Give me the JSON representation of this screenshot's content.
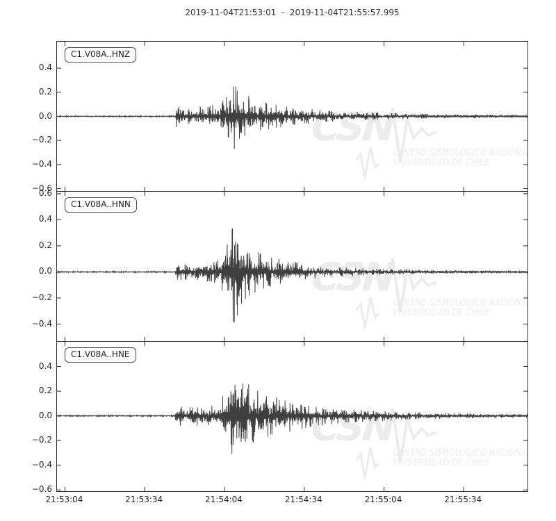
{
  "figure": {
    "background": "#ffffff",
    "axis_color": "#2e2e2e",
    "trace_color": "#3f3f3f",
    "watermark_color": "#ececec"
  },
  "watermark": {
    "logo_text": "CSN",
    "line1": "CENTRO SISMOLÓGICO NACIONAL",
    "line2": "UNIVERSIDAD DE CHILE"
  },
  "chart_data": {
    "type": "line",
    "title": "2019-11-04T21:53:01  -  2019-11-04T21:55:57.995",
    "x_start_label": "21:53:01",
    "x_end_label": "21:55:57.995",
    "duration_seconds": 176.995,
    "xlabel": "",
    "ylabel": "",
    "grid": false,
    "legend": false,
    "xticks": [
      {
        "label": "21:53:04",
        "t": 3
      },
      {
        "label": "21:53:34",
        "t": 33
      },
      {
        "label": "21:54:04",
        "t": 63
      },
      {
        "label": "21:54:34",
        "t": 93
      },
      {
        "label": "21:55:04",
        "t": 123
      },
      {
        "label": "21:55:34",
        "t": 153
      }
    ],
    "subplots": [
      {
        "label": "C1.V08A..HNZ",
        "ylim": [
          -0.62,
          0.62
        ],
        "yticks": [
          0.4,
          0.2,
          0.0,
          -0.2,
          -0.4,
          -0.6
        ],
        "onset_t": 44.5,
        "peak_t": 66.5,
        "peak_amplitude": 0.28,
        "neg_scale": 0.95,
        "seed": 11,
        "envelope": [
          [
            0,
            0.004
          ],
          [
            44.3,
            0.004
          ],
          [
            45,
            0.095
          ],
          [
            47,
            0.075
          ],
          [
            52,
            0.07
          ],
          [
            57,
            0.078
          ],
          [
            61,
            0.1
          ],
          [
            64,
            0.16
          ],
          [
            66.5,
            0.27
          ],
          [
            68.5,
            0.2
          ],
          [
            72,
            0.155
          ],
          [
            78,
            0.12
          ],
          [
            85,
            0.09
          ],
          [
            92,
            0.065
          ],
          [
            100,
            0.05
          ],
          [
            112,
            0.035
          ],
          [
            126,
            0.025
          ],
          [
            145,
            0.017
          ],
          [
            160,
            0.013
          ],
          [
            176.995,
            0.011
          ]
        ]
      },
      {
        "label": "C1.V08A..HNN",
        "ylim": [
          -0.53,
          0.615
        ],
        "yticks": [
          0.6,
          0.4,
          0.2,
          0.0,
          -0.2,
          -0.4
        ],
        "onset_t": 44.5,
        "peak_t": 66.8,
        "peak_amplitude": 0.43,
        "neg_scale": 0.95,
        "seed": 22,
        "envelope": [
          [
            0,
            0.004
          ],
          [
            44.3,
            0.004
          ],
          [
            45,
            0.07
          ],
          [
            50,
            0.062
          ],
          [
            56,
            0.068
          ],
          [
            60,
            0.085
          ],
          [
            63,
            0.16
          ],
          [
            65,
            0.27
          ],
          [
            66.8,
            0.43
          ],
          [
            68.2,
            0.31
          ],
          [
            70,
            0.22
          ],
          [
            73,
            0.17
          ],
          [
            77,
            0.13
          ],
          [
            82,
            0.1
          ],
          [
            88,
            0.075
          ],
          [
            95,
            0.055
          ],
          [
            103,
            0.04
          ],
          [
            115,
            0.028
          ],
          [
            130,
            0.019
          ],
          [
            150,
            0.012
          ],
          [
            176.995,
            0.009
          ]
        ]
      },
      {
        "label": "C1.V08A..HNE",
        "ylim": [
          -0.61,
          0.6
        ],
        "yticks": [
          0.4,
          0.2,
          0.0,
          -0.2,
          -0.4,
          -0.6
        ],
        "onset_t": 44.5,
        "peak_t": 66.5,
        "peak_amplitude": 0.46,
        "neg_scale": 1.08,
        "seed": 33,
        "envelope": [
          [
            0,
            0.004
          ],
          [
            44.3,
            0.004
          ],
          [
            45,
            0.07
          ],
          [
            50,
            0.065
          ],
          [
            55,
            0.072
          ],
          [
            60,
            0.09
          ],
          [
            63,
            0.17
          ],
          [
            65,
            0.32
          ],
          [
            66.5,
            0.46
          ],
          [
            68,
            0.35
          ],
          [
            70,
            0.27
          ],
          [
            73,
            0.22
          ],
          [
            76,
            0.18
          ],
          [
            80,
            0.155
          ],
          [
            84,
            0.13
          ],
          [
            88,
            0.11
          ],
          [
            93,
            0.085
          ],
          [
            100,
            0.065
          ],
          [
            108,
            0.05
          ],
          [
            118,
            0.04
          ],
          [
            130,
            0.03
          ],
          [
            145,
            0.022
          ],
          [
            160,
            0.016
          ],
          [
            176.995,
            0.013
          ]
        ]
      }
    ]
  }
}
